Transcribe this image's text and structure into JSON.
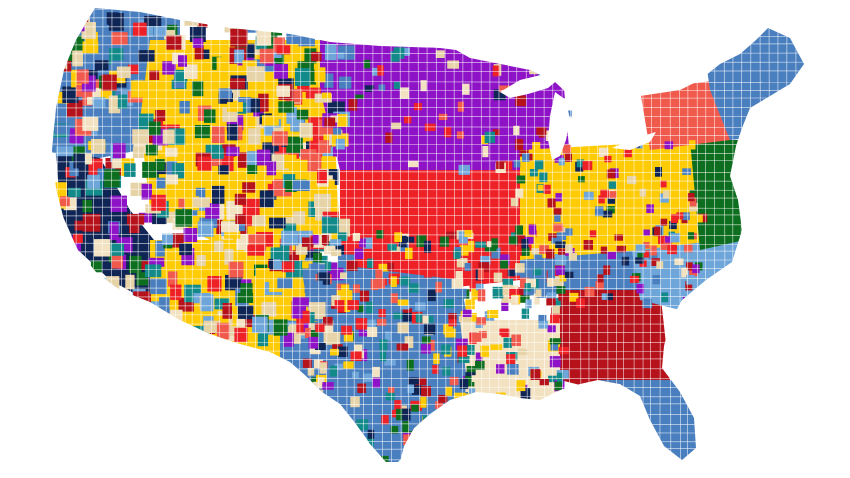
{
  "map": {
    "palette": {
      "purple": "#8e12c6",
      "red": "#ee2127",
      "gold": "#ffcb05",
      "steel_blue": "#4a7fbf",
      "light_blue": "#6fa6da",
      "navy": "#0f2556",
      "dark_green": "#0d6e1f",
      "crimson": "#b5121b",
      "cream": "#f2e2c2",
      "coral": "#f05a4d",
      "teal": "#138a8a",
      "tan": "#e7d3a8",
      "great_lakes": "#ffffff"
    },
    "background": "#ffffff",
    "county_border": "#ffffff",
    "regions": [
      {
        "name": "pacific-northwest",
        "color": "steel_blue"
      },
      {
        "name": "california",
        "color": "navy"
      },
      {
        "name": "southwest",
        "color": "gold"
      },
      {
        "name": "mountain",
        "color": "gold"
      },
      {
        "name": "upper-midwest",
        "color": "purple"
      },
      {
        "name": "plains",
        "color": "red"
      },
      {
        "name": "southern-plains",
        "color": "steel_blue"
      },
      {
        "name": "texas",
        "color": "steel_blue"
      },
      {
        "name": "deep-south",
        "color": "cream"
      },
      {
        "name": "tennessee",
        "color": "steel_blue"
      },
      {
        "name": "georgia",
        "color": "crimson"
      },
      {
        "name": "carolinas",
        "color": "light_blue"
      },
      {
        "name": "ohio-valley",
        "color": "gold"
      },
      {
        "name": "mid-atlantic",
        "color": "dark_green"
      },
      {
        "name": "new-york",
        "color": "coral"
      },
      {
        "name": "new-england",
        "color": "steel_blue"
      },
      {
        "name": "florida",
        "color": "steel_blue"
      }
    ]
  }
}
